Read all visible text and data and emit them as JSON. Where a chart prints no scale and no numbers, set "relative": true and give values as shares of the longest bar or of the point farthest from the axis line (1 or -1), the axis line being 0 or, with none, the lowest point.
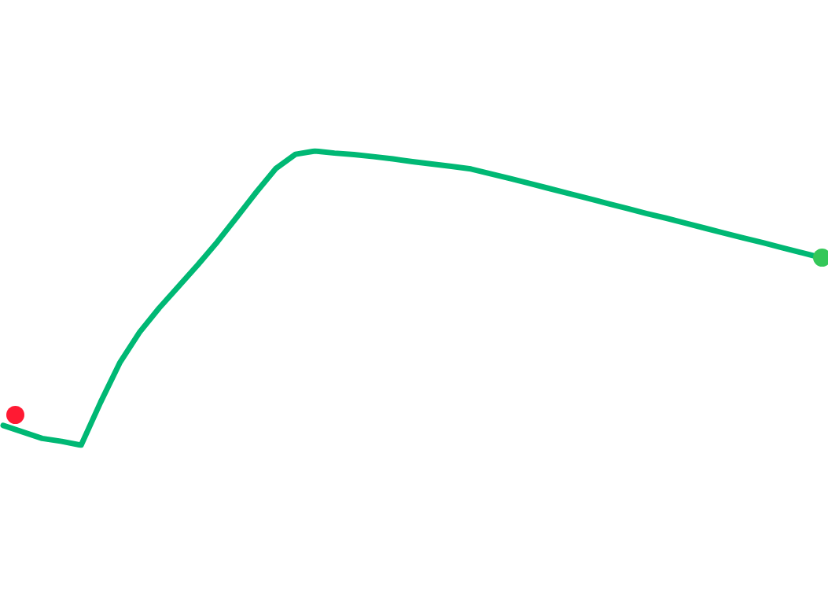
{
  "chart_data": {
    "type": "line",
    "relative": true,
    "tick_labels": false,
    "categories": [
      null,
      null,
      null,
      null,
      null,
      null,
      null,
      null,
      null,
      null,
      null,
      null,
      null,
      null,
      null,
      null,
      null,
      null,
      null,
      null,
      null,
      null,
      null,
      null,
      null,
      null,
      null,
      null,
      null,
      null,
      null,
      null,
      null,
      null,
      null,
      null,
      null,
      null,
      null,
      null,
      null,
      null,
      null
    ],
    "series": [
      {
        "color": "#00b874",
        "marker": "none",
        "line_style": "solid",
        "values": [
          0.067,
          0.045,
          0.023,
          0.013,
          0,
          0.146,
          0.282,
          0.384,
          0.466,
          0.54,
          0.614,
          0.692,
          0.776,
          0.861,
          0.941,
          0.989,
          1,
          0.993,
          0.988,
          0.981,
          0.973,
          0.964,
          0.956,
          0.948,
          0.939,
          0.923,
          0.907,
          0.89,
          0.873,
          0.856,
          0.839,
          0.822,
          0.805,
          0.788,
          0.772,
          0.755,
          0.738,
          0.721,
          0.704,
          0.688,
          0.671,
          0.654,
          0.637
        ]
      }
    ]
  }
}
